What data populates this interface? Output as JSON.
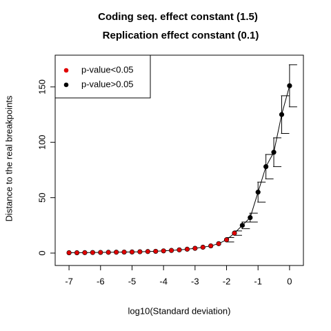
{
  "chart_data": {
    "type": "line",
    "title": [
      "Coding seq. effect constant (1.5)",
      "Replication effect constant (0.1)"
    ],
    "xlabel": "log10(Standard deviation)",
    "ylabel": "Distance to the real breakpoints",
    "x": [
      -7,
      -6.75,
      -6.5,
      -6.25,
      -6,
      -5.75,
      -5.5,
      -5.25,
      -5,
      -4.75,
      -4.5,
      -4.25,
      -4,
      -3.75,
      -3.5,
      -3.25,
      -3,
      -2.75,
      -2.5,
      -2.25,
      -2,
      -1.75,
      -1.5,
      -1.25,
      -1,
      -0.75,
      -0.5,
      -0.25,
      0
    ],
    "series": [
      {
        "name": "p-value<0.05",
        "color": "#e00000",
        "values": [
          0.3,
          0.3,
          0.4,
          0.5,
          0.6,
          0.7,
          0.8,
          0.9,
          1.0,
          1.2,
          1.4,
          1.6,
          2,
          2.4,
          2.9,
          3.5,
          4.3,
          5.3,
          6.5,
          8.5,
          12,
          18,
          null,
          null,
          null,
          null,
          null,
          null,
          null
        ]
      },
      {
        "name": "p-value>0.05",
        "color": "#000000",
        "values": [
          null,
          null,
          null,
          null,
          null,
          null,
          null,
          null,
          null,
          null,
          null,
          null,
          null,
          null,
          null,
          null,
          null,
          null,
          null,
          null,
          null,
          null,
          25,
          32,
          55,
          78,
          91,
          125,
          151
        ]
      }
    ],
    "errors": [
      null,
      null,
      null,
      null,
      null,
      null,
      null,
      null,
      null,
      null,
      null,
      null,
      null,
      null,
      null,
      null,
      null,
      null,
      null,
      null,
      2,
      2,
      3,
      4,
      9,
      11,
      13,
      17,
      19
    ],
    "xlim": [
      -7.44,
      0.44
    ],
    "ylim": [
      -11.2,
      178.6
    ],
    "xticks": [
      -7,
      -6,
      -5,
      -4,
      -3,
      -2,
      -1,
      0
    ],
    "yticks": [
      0,
      50,
      100,
      150
    ],
    "legend": "top-left"
  }
}
